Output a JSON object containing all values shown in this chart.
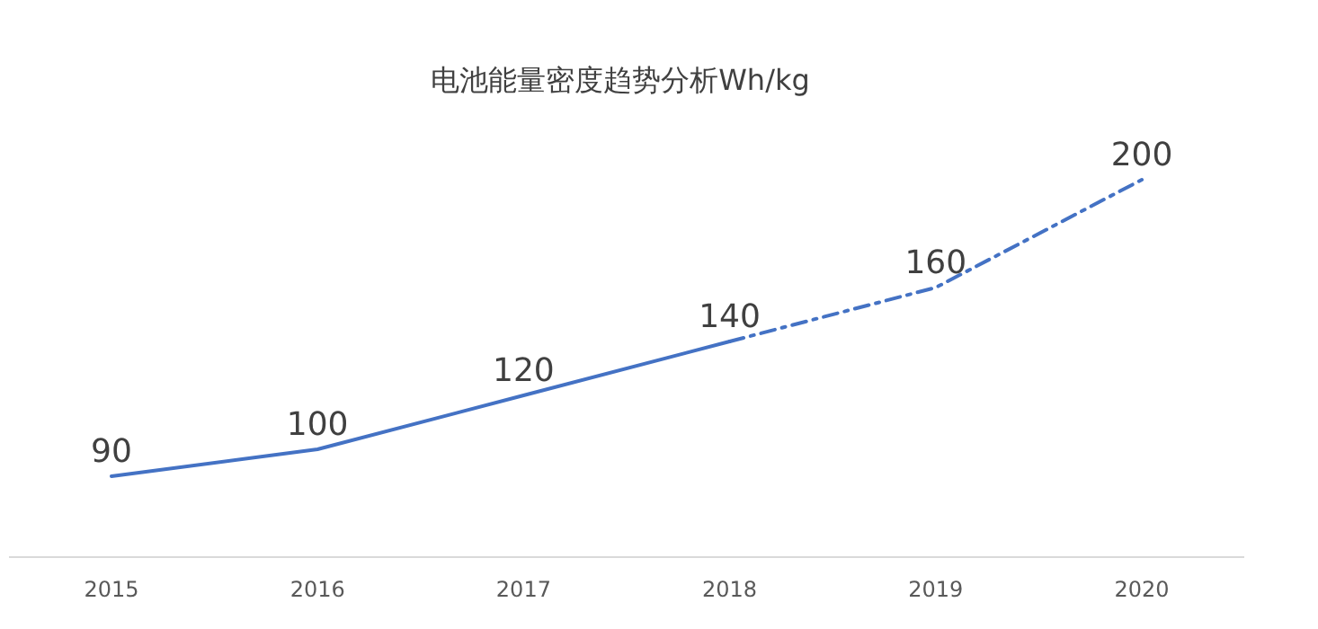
{
  "chart_data": {
    "type": "line",
    "title": "电池能量密度趋势分析Wh/kg",
    "categories": [
      "2015",
      "2016",
      "2017",
      "2018",
      "2019",
      "2020"
    ],
    "series": [
      {
        "color": "#4472c4",
        "line_style": "solid",
        "values": [
          90,
          100,
          120,
          140,
          null,
          null
        ],
        "value_labels": [
          "90",
          "100",
          "120",
          "140",
          null,
          null
        ]
      },
      {
        "color": "#4472c4",
        "line_style": "dashed",
        "values": [
          null,
          null,
          null,
          140,
          160,
          200
        ],
        "value_labels": [
          null,
          null,
          null,
          null,
          "160",
          "200"
        ]
      }
    ]
  }
}
